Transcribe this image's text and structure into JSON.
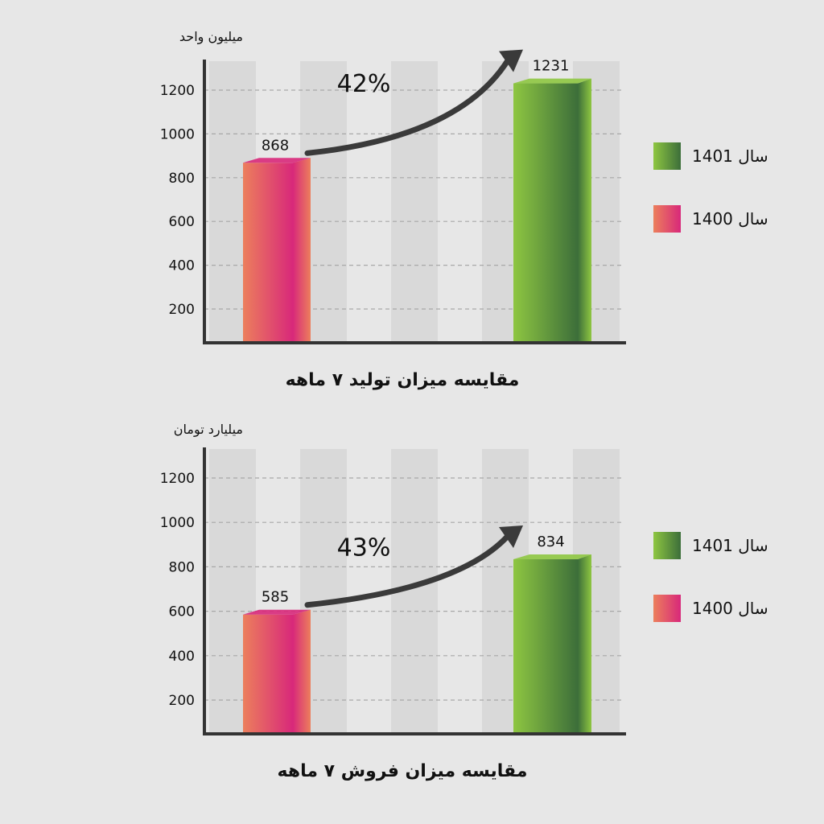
{
  "charts": [
    {
      "unit": "میلیون واحد",
      "title": "مقایسه میزان تولید ۷ ماهه",
      "growth_label": "42%",
      "legend": [
        {
          "label": "سال 1401",
          "color": "#6a9e3a"
        },
        {
          "label": "سال 1400",
          "color": "#e0486a"
        }
      ]
    },
    {
      "unit": "میلیارد تومان",
      "title": "مقایسه میزان فروش ۷ ماهه",
      "growth_label": "43%",
      "legend": [
        {
          "label": "سال 1401",
          "color": "#6a9e3a"
        },
        {
          "label": "سال 1400",
          "color": "#e0486a"
        }
      ]
    }
  ],
  "chart_data": [
    {
      "type": "bar",
      "title": "مقایسه میزان تولید ۷ ماهه",
      "ylabel": "میلیون واحد",
      "yticks": [
        200,
        400,
        600,
        800,
        1000,
        1200
      ],
      "ylim": [
        50,
        1300
      ],
      "grid": true,
      "legend_position": "right",
      "series": [
        {
          "name": "سال 1400",
          "values": [
            868
          ],
          "colors": [
            "#ec7f5c",
            "#d8287a"
          ]
        },
        {
          "name": "سال 1401",
          "values": [
            1231
          ],
          "colors": [
            "#8ec641",
            "#3c6e3a"
          ]
        }
      ],
      "annotation": "42%"
    },
    {
      "type": "bar",
      "title": "مقایسه میزان فروش ۷ ماهه",
      "ylabel": "میلیارد تومان",
      "yticks": [
        200,
        400,
        600,
        800,
        1000,
        1200
      ],
      "ylim": [
        50,
        1300
      ],
      "grid": true,
      "legend_position": "right",
      "series": [
        {
          "name": "سال 1400",
          "values": [
            585
          ],
          "colors": [
            "#ec7f5c",
            "#d8287a"
          ]
        },
        {
          "name": "سال 1401",
          "values": [
            834
          ],
          "colors": [
            "#8ec641",
            "#3c6e3a"
          ]
        }
      ],
      "annotation": "43%"
    }
  ]
}
